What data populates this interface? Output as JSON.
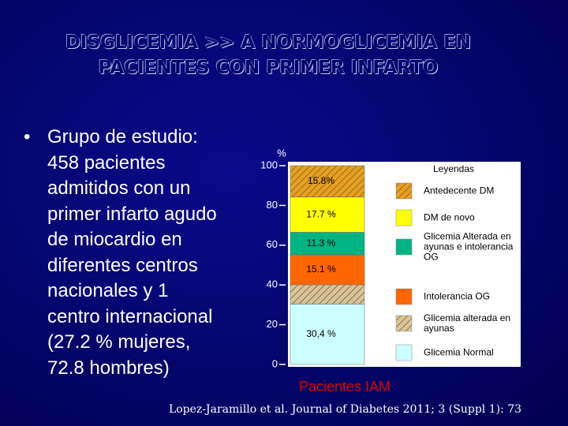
{
  "slide": {
    "title_lines": [
      "DISGLICEMIA >> A NORMOGLICEMIA EN",
      "PACIENTES CON PRIMER INFARTO"
    ],
    "bullet_lines": [
      "Grupo de estudio:",
      "458 pacientes",
      "admitidos con un",
      "primer infarto agudo",
      "de miocardio en",
      "diferentes centros",
      "nacionales y 1",
      "centro internacional",
      "(27.2 % mujeres,",
      "72.8 hombres)"
    ],
    "citation": "Lopez-Jaramillo et al. Journal of Diabetes 2011; 3 (Suppl 1): 73"
  },
  "chart_data": {
    "type": "stacked-bar",
    "y_label": "%",
    "x_label": "Pacientes IAM",
    "legend_title": "Leyendas",
    "ylim": [
      0,
      100
    ],
    "yticks": [
      0,
      20,
      40,
      60,
      80,
      100
    ],
    "series": [
      {
        "name": "Glicemia Normal",
        "color": "#ccffff",
        "values": [
          30.4
        ],
        "value_labels": [
          "30,4 %"
        ]
      },
      {
        "name": "Glicemia alterada en ayunas",
        "color": "#d8c49a",
        "pattern": "hatch",
        "values": [
          9.7
        ]
      },
      {
        "name": "Intolerancia OG",
        "color": "#ff6600",
        "values": [
          15.1
        ],
        "value_labels": [
          "15.1 %"
        ]
      },
      {
        "name": "Glicemia Alterada en ayunas e intolerancia OG",
        "color": "#00b383",
        "values": [
          11.3
        ],
        "value_labels": [
          "11.3 %"
        ]
      },
      {
        "name": "DM de novo",
        "color": "#ffff00",
        "values": [
          17.7
        ],
        "value_labels": [
          "17.7 %"
        ]
      },
      {
        "name": "Antedecente DM",
        "color": "#e8a020",
        "pattern": "hatch",
        "values": [
          15.8
        ],
        "value_labels": [
          "15.8%"
        ]
      }
    ]
  }
}
